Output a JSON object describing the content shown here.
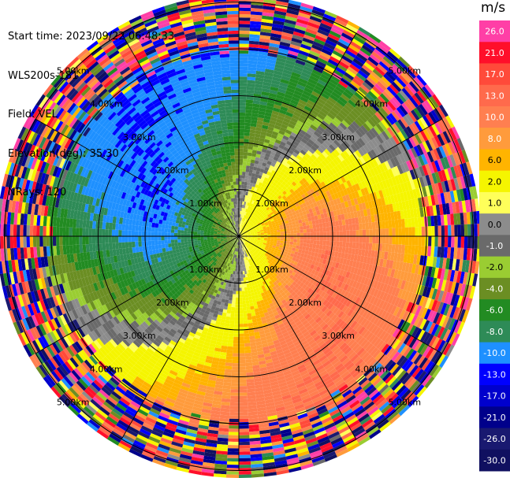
{
  "info": {
    "start_time": "Start time: 2023/09/22 06:48:33",
    "station": "WLS200s-181",
    "field": "Field: VEL",
    "elevation": "Elevation(deg): 35.30",
    "nrays": "NRays: 120"
  },
  "colorbar": {
    "unit": "m/s",
    "levels": [
      {
        "label": "26.0",
        "color": "#ff3fa6"
      },
      {
        "label": "21.0",
        "color": "#ff0f2a"
      },
      {
        "label": "17.0",
        "color": "#ff4a3a"
      },
      {
        "label": "13.0",
        "color": "#ff6a4c"
      },
      {
        "label": "10.0",
        "color": "#ff7f50"
      },
      {
        "label": "8.0",
        "color": "#ff9b3c"
      },
      {
        "label": "6.0",
        "color": "#ffb400"
      },
      {
        "label": "2.0",
        "color": "#f5f500"
      },
      {
        "label": "1.0",
        "color": "#ffff5a"
      },
      {
        "label": "0.0",
        "color": "#8c8c8c"
      },
      {
        "label": "-1.0",
        "color": "#6a6a6a"
      },
      {
        "label": "-2.0",
        "color": "#9acd32"
      },
      {
        "label": "-4.0",
        "color": "#6b8e23"
      },
      {
        "label": "-6.0",
        "color": "#228b22"
      },
      {
        "label": "-8.0",
        "color": "#2e8b57"
      },
      {
        "label": "-10.0",
        "color": "#1e90ff"
      },
      {
        "label": "-13.0",
        "color": "#0000ff"
      },
      {
        "label": "-17.0",
        "color": "#0000cd"
      },
      {
        "label": "-21.0",
        "color": "#00008b"
      },
      {
        "label": "-26.0",
        "color": "#191970"
      },
      {
        "label": "-30.0",
        "color": "#101060"
      }
    ]
  },
  "chart_data": {
    "type": "heatmap",
    "projection": "polar PPI",
    "field": "VEL",
    "units": "m/s",
    "range_rings_km": [
      1.0,
      2.0,
      3.0,
      4.0,
      5.0
    ],
    "range_ring_labels": [
      "1.00km",
      "2.00km",
      "3.00km",
      "4.00km",
      "5.00km"
    ],
    "num_rays": 120,
    "spokes_deg": [
      0,
      30,
      60,
      90,
      120,
      150,
      180,
      210,
      240,
      270,
      300,
      330
    ],
    "pattern": {
      "positive_toward_azimuth_deg": 100,
      "negative_toward_azimuth_deg": 280,
      "max_positive_ms": 13.0,
      "max_negative_ms": -10.0,
      "noise_beyond_km": 3.9
    }
  }
}
